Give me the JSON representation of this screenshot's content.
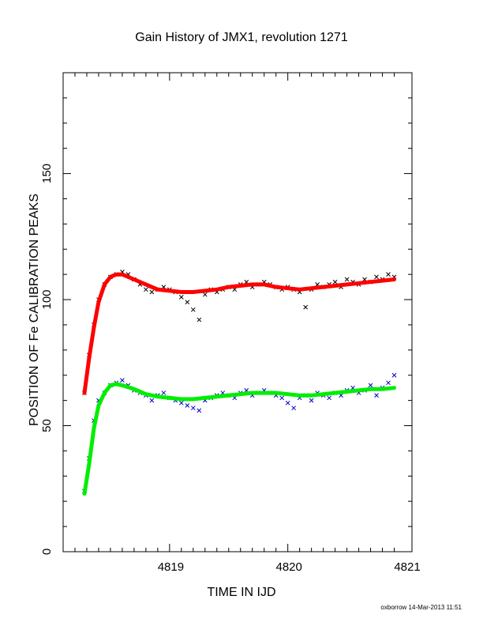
{
  "chart_data": {
    "type": "scatter",
    "title": "Gain History of JMX1, revolution 1271",
    "xlabel": "TIME IN IJD",
    "ylabel": "POSITION OF Fe CALIBRATION PEAKS",
    "xlim": [
      4818.1,
      4821.05
    ],
    "ylim": [
      0,
      190
    ],
    "x_ticks": [
      "4819",
      "4820",
      "4821"
    ],
    "y_ticks": [
      "0",
      "50",
      "100",
      "150"
    ],
    "grid": false,
    "legend": "none",
    "series": [
      {
        "marker": "x",
        "color": "#000000",
        "points": [
          [
            4818.28,
            63
          ],
          [
            4818.32,
            78
          ],
          [
            4818.36,
            90
          ],
          [
            4818.4,
            100
          ],
          [
            4818.45,
            106
          ],
          [
            4818.5,
            109
          ],
          [
            4818.55,
            110
          ],
          [
            4818.6,
            111
          ],
          [
            4818.65,
            110
          ],
          [
            4818.7,
            108
          ],
          [
            4818.75,
            106
          ],
          [
            4818.8,
            104
          ],
          [
            4818.85,
            103
          ],
          [
            4818.9,
            104
          ],
          [
            4818.95,
            105
          ],
          [
            4819.0,
            104
          ],
          [
            4819.05,
            103
          ],
          [
            4819.1,
            101
          ],
          [
            4819.15,
            99
          ],
          [
            4819.2,
            96
          ],
          [
            4819.25,
            92
          ],
          [
            4819.3,
            102
          ],
          [
            4819.35,
            104
          ],
          [
            4819.4,
            103
          ],
          [
            4819.45,
            104
          ],
          [
            4819.5,
            105
          ],
          [
            4819.55,
            104
          ],
          [
            4819.6,
            106
          ],
          [
            4819.65,
            107
          ],
          [
            4819.7,
            105
          ],
          [
            4819.75,
            106
          ],
          [
            4819.8,
            107
          ],
          [
            4819.85,
            106
          ],
          [
            4819.9,
            105
          ],
          [
            4819.95,
            104
          ],
          [
            4820.0,
            105
          ],
          [
            4820.05,
            104
          ],
          [
            4820.1,
            103
          ],
          [
            4820.15,
            97
          ],
          [
            4820.2,
            104
          ],
          [
            4820.25,
            106
          ],
          [
            4820.3,
            105
          ],
          [
            4820.35,
            106
          ],
          [
            4820.4,
            107
          ],
          [
            4820.45,
            105
          ],
          [
            4820.5,
            108
          ],
          [
            4820.55,
            107
          ],
          [
            4820.6,
            106
          ],
          [
            4820.65,
            108
          ],
          [
            4820.7,
            107
          ],
          [
            4820.75,
            109
          ],
          [
            4820.8,
            108
          ],
          [
            4820.85,
            110
          ],
          [
            4820.9,
            109
          ]
        ]
      },
      {
        "marker": "x",
        "color": "#0000cc",
        "points": [
          [
            4818.28,
            24
          ],
          [
            4818.32,
            37
          ],
          [
            4818.36,
            52
          ],
          [
            4818.4,
            60
          ],
          [
            4818.45,
            63
          ],
          [
            4818.5,
            66
          ],
          [
            4818.55,
            67
          ],
          [
            4818.6,
            68
          ],
          [
            4818.65,
            66
          ],
          [
            4818.7,
            64
          ],
          [
            4818.75,
            63
          ],
          [
            4818.8,
            62
          ],
          [
            4818.85,
            60
          ],
          [
            4818.9,
            62
          ],
          [
            4818.95,
            63
          ],
          [
            4819.0,
            61
          ],
          [
            4819.05,
            60
          ],
          [
            4819.1,
            59
          ],
          [
            4819.15,
            58
          ],
          [
            4819.2,
            57
          ],
          [
            4819.25,
            56
          ],
          [
            4819.3,
            60
          ],
          [
            4819.35,
            61
          ],
          [
            4819.4,
            62
          ],
          [
            4819.45,
            63
          ],
          [
            4819.5,
            62
          ],
          [
            4819.55,
            61
          ],
          [
            4819.6,
            63
          ],
          [
            4819.65,
            64
          ],
          [
            4819.7,
            62
          ],
          [
            4819.75,
            63
          ],
          [
            4819.8,
            64
          ],
          [
            4819.85,
            63
          ],
          [
            4819.9,
            62
          ],
          [
            4819.95,
            61
          ],
          [
            4820.0,
            59
          ],
          [
            4820.05,
            57
          ],
          [
            4820.1,
            61
          ],
          [
            4820.15,
            62
          ],
          [
            4820.2,
            60
          ],
          [
            4820.25,
            63
          ],
          [
            4820.3,
            62
          ],
          [
            4820.35,
            61
          ],
          [
            4820.4,
            63
          ],
          [
            4820.45,
            62
          ],
          [
            4820.5,
            64
          ],
          [
            4820.55,
            65
          ],
          [
            4820.6,
            63
          ],
          [
            4820.65,
            64
          ],
          [
            4820.7,
            66
          ],
          [
            4820.75,
            62
          ],
          [
            4820.8,
            65
          ],
          [
            4820.85,
            67
          ],
          [
            4820.9,
            70
          ]
        ]
      },
      {
        "marker": "line",
        "color": "#ff0000",
        "points": [
          [
            4818.28,
            63
          ],
          [
            4818.32,
            77
          ],
          [
            4818.36,
            89
          ],
          [
            4818.4,
            99
          ],
          [
            4818.45,
            106
          ],
          [
            4818.5,
            109
          ],
          [
            4818.55,
            110
          ],
          [
            4818.6,
            110
          ],
          [
            4818.7,
            108
          ],
          [
            4818.8,
            106
          ],
          [
            4818.9,
            104
          ],
          [
            4819.0,
            103.5
          ],
          [
            4819.1,
            103
          ],
          [
            4819.2,
            103
          ],
          [
            4819.3,
            103.5
          ],
          [
            4819.4,
            104
          ],
          [
            4819.5,
            105
          ],
          [
            4819.6,
            105.5
          ],
          [
            4819.7,
            106
          ],
          [
            4819.8,
            106
          ],
          [
            4819.9,
            105
          ],
          [
            4820.0,
            104.5
          ],
          [
            4820.1,
            104
          ],
          [
            4820.2,
            104.5
          ],
          [
            4820.3,
            105
          ],
          [
            4820.4,
            105.5
          ],
          [
            4820.5,
            106
          ],
          [
            4820.6,
            106.5
          ],
          [
            4820.7,
            107
          ],
          [
            4820.8,
            107.5
          ],
          [
            4820.9,
            108
          ]
        ]
      },
      {
        "marker": "line",
        "color": "#00ee00",
        "points": [
          [
            4818.28,
            23
          ],
          [
            4818.32,
            35
          ],
          [
            4818.36,
            49
          ],
          [
            4818.4,
            58
          ],
          [
            4818.45,
            63
          ],
          [
            4818.5,
            66
          ],
          [
            4818.55,
            66.5
          ],
          [
            4818.6,
            66
          ],
          [
            4818.7,
            64.5
          ],
          [
            4818.8,
            62.5
          ],
          [
            4818.9,
            61.5
          ],
          [
            4819.0,
            61
          ],
          [
            4819.1,
            60.5
          ],
          [
            4819.2,
            60.5
          ],
          [
            4819.3,
            61
          ],
          [
            4819.4,
            61.5
          ],
          [
            4819.5,
            62
          ],
          [
            4819.6,
            62.5
          ],
          [
            4819.7,
            63
          ],
          [
            4819.8,
            63
          ],
          [
            4819.9,
            63
          ],
          [
            4820.0,
            62.5
          ],
          [
            4820.1,
            62
          ],
          [
            4820.2,
            62
          ],
          [
            4820.3,
            62.5
          ],
          [
            4820.4,
            63
          ],
          [
            4820.5,
            63.5
          ],
          [
            4820.6,
            64
          ],
          [
            4820.7,
            64.5
          ],
          [
            4820.8,
            64.5
          ],
          [
            4820.9,
            65
          ]
        ]
      }
    ]
  },
  "footer": "oxborrow 14-Mar-2013 11:51"
}
